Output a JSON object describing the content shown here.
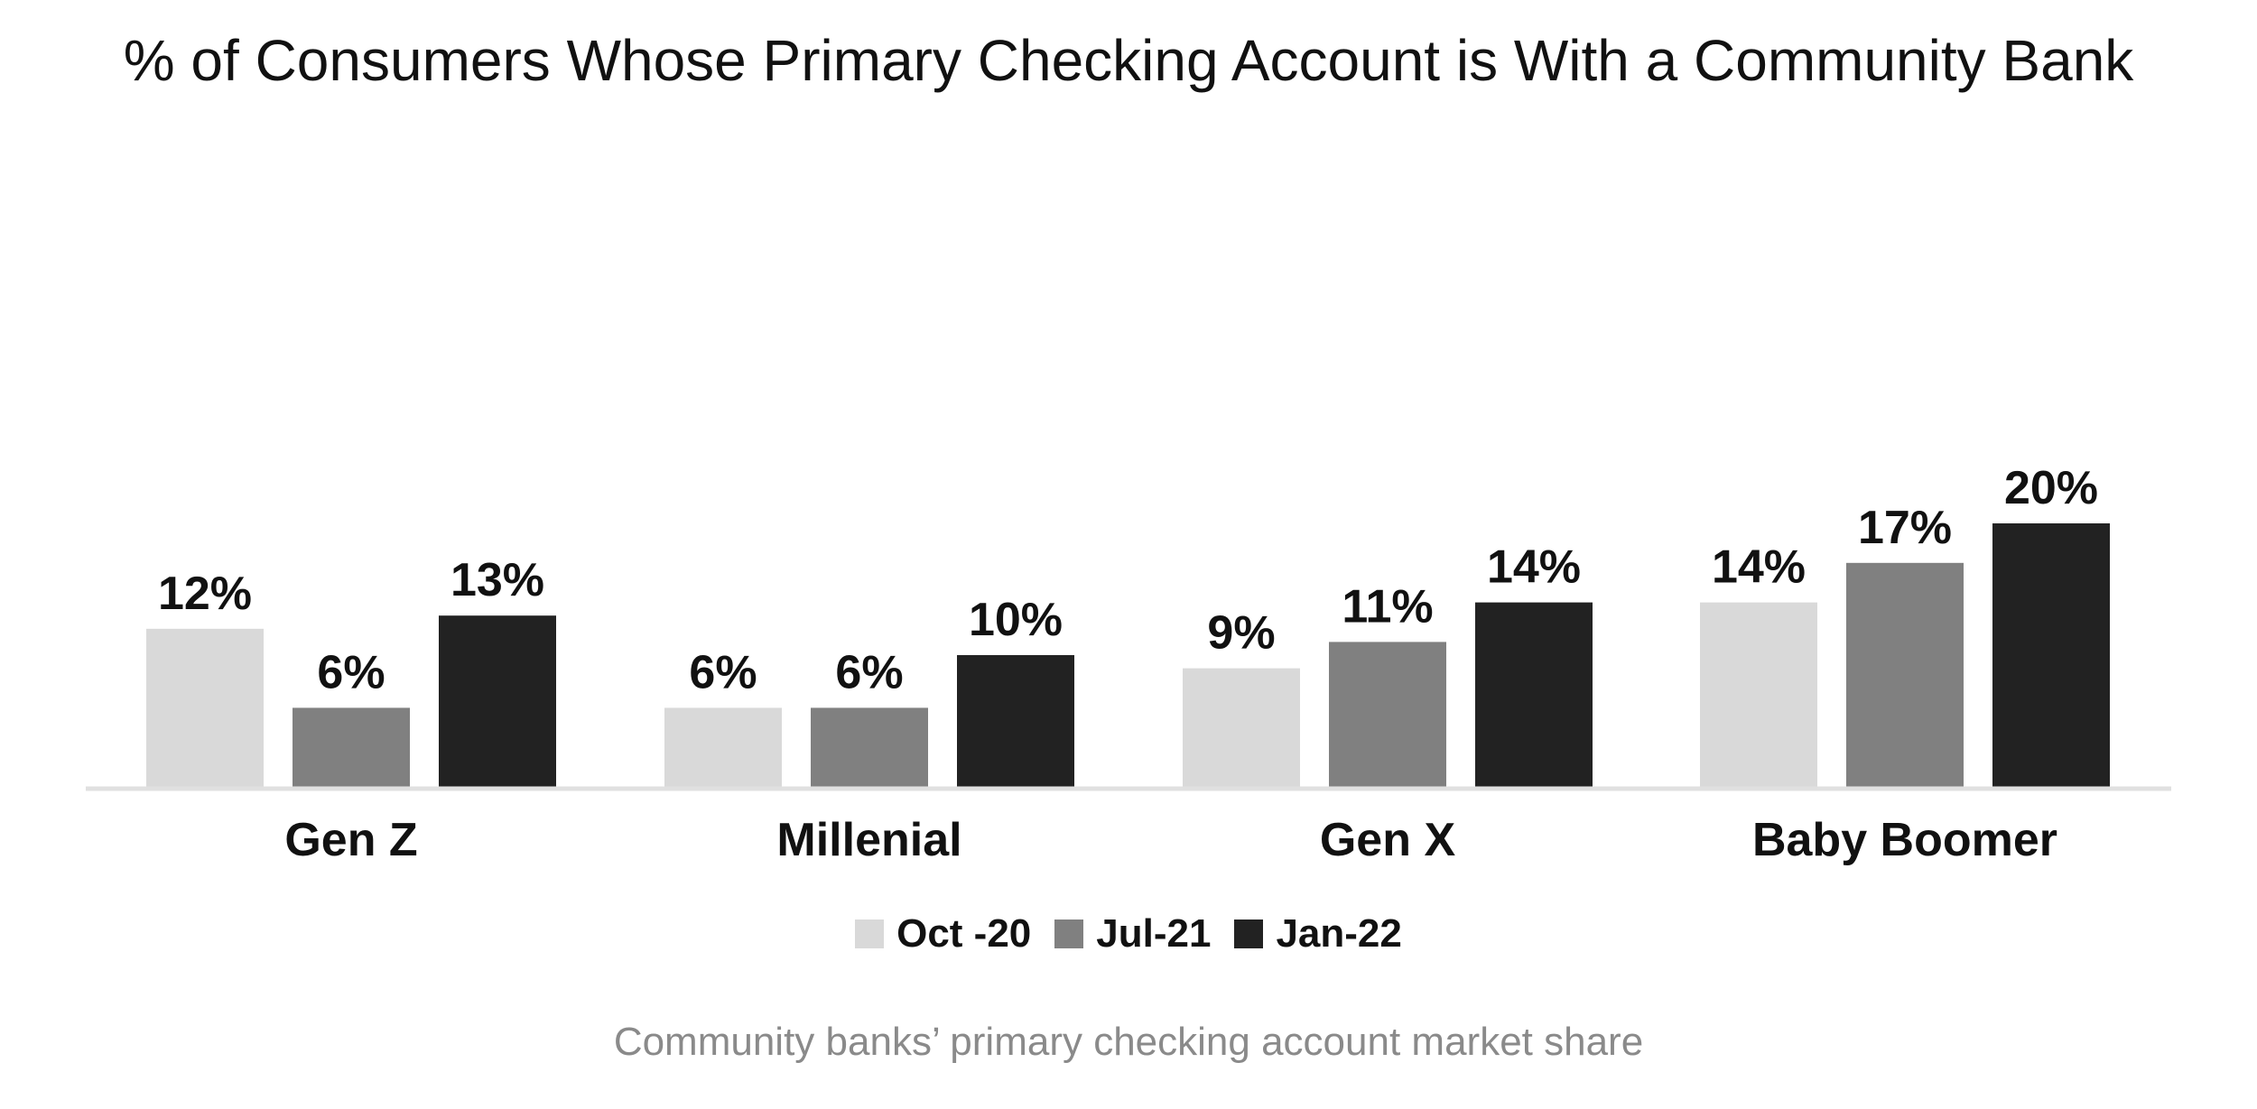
{
  "chart_data": {
    "type": "bar",
    "title": "% of Consumers Whose Primary Checking Account is With a Community Bank",
    "caption": "Community banks’ primary checking account market share",
    "categories": [
      "Gen Z",
      "Millenial",
      "Gen X",
      "Baby Boomer"
    ],
    "series": [
      {
        "name": "Oct -20",
        "color": "#d9d9d9",
        "values": [
          12,
          6,
          9,
          14
        ],
        "labels": [
          "12%",
          "6%",
          "9%",
          "14%"
        ]
      },
      {
        "name": "Jul-21",
        "color": "#808080",
        "values": [
          6,
          6,
          11,
          17
        ],
        "labels": [
          "6%",
          "6%",
          "11%",
          "17%"
        ]
      },
      {
        "name": "Jan-22",
        "color": "#222222",
        "values": [
          13,
          10,
          14,
          20
        ],
        "labels": [
          "13%",
          "10%",
          "14%",
          "20%"
        ]
      }
    ],
    "ylim": [
      0,
      50
    ],
    "grid": false,
    "legend_position": "bottom",
    "axis_color": "#e0e0e0"
  }
}
